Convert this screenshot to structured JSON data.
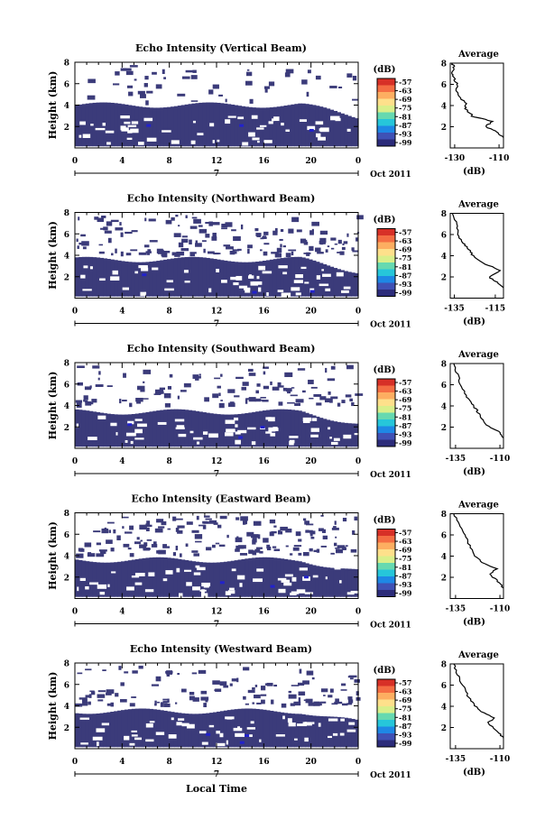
{
  "common": {
    "ylabel": "Height (km)",
    "xlabel": "Local Time",
    "date_label": "Oct 2011",
    "day_label": "7",
    "colorbar_unit": "(dB)",
    "colorbar_ticks": [
      "-57",
      "-63",
      "-69",
      "-75",
      "-81",
      "-87",
      "-93",
      "-99"
    ],
    "average_title": "Average",
    "average_xlabel": "(dB)",
    "colors": {
      "echo": "#3b3b7a",
      "speck": "#2222cc",
      "background": "#ffffff",
      "colorscale": [
        "#d73027",
        "#f46d43",
        "#fdae61",
        "#fee08b",
        "#d9ef8b",
        "#66d9b0",
        "#26c6da",
        "#1e88e5",
        "#3f51b5",
        "#2c2c7a"
      ]
    }
  },
  "chart_data": [
    {
      "type": "heatmap",
      "title": "Echo Intensity (Vertical Beam)",
      "x_ticks": [
        "0",
        "4",
        "8",
        "12",
        "16",
        "20",
        "0"
      ],
      "y_ticks": [
        "2",
        "4",
        "6",
        "8"
      ],
      "xlim": [
        0,
        24
      ],
      "ylim": [
        0,
        8
      ],
      "avg_ticks": [
        "-130",
        "-110"
      ],
      "avg_xlim": [
        -132,
        -108
      ],
      "avg_profile": [
        [
          -108,
          1
        ],
        [
          -111,
          1.5
        ],
        [
          -116,
          2
        ],
        [
          -113,
          2.5
        ],
        [
          -122,
          3
        ],
        [
          -125,
          3.7
        ],
        [
          -125,
          4.3
        ],
        [
          -129,
          5
        ],
        [
          -129,
          6
        ],
        [
          -130,
          6.5
        ],
        [
          -131,
          7
        ],
        [
          -130,
          7.5
        ],
        [
          -131,
          8
        ]
      ]
    },
    {
      "type": "heatmap",
      "title": "Echo Intensity (Northward Beam)",
      "x_ticks": [
        "0",
        "4",
        "8",
        "12",
        "16",
        "20",
        "0"
      ],
      "y_ticks": [
        "2",
        "4",
        "6",
        "8"
      ],
      "xlim": [
        0,
        24
      ],
      "ylim": [
        0,
        8
      ],
      "avg_ticks": [
        "-135",
        "-115"
      ],
      "avg_xlim": [
        -137,
        -111
      ],
      "avg_profile": [
        [
          -111,
          1
        ],
        [
          -114,
          1.5
        ],
        [
          -118,
          2
        ],
        [
          -112,
          2.6
        ],
        [
          -120,
          3.2
        ],
        [
          -126,
          4
        ],
        [
          -128,
          4.6
        ],
        [
          -131,
          5.2
        ],
        [
          -133,
          6
        ],
        [
          -134,
          7
        ],
        [
          -136,
          8
        ]
      ]
    },
    {
      "type": "heatmap",
      "title": "Echo Intensity (Southward Beam)",
      "x_ticks": [
        "0",
        "4",
        "8",
        "12",
        "16",
        "20",
        "0"
      ],
      "y_ticks": [
        "2",
        "4",
        "6",
        "8"
      ],
      "xlim": [
        0,
        24
      ],
      "ylim": [
        0,
        8
      ],
      "avg_ticks": [
        "-135",
        "-110"
      ],
      "avg_xlim": [
        -138,
        -108
      ],
      "avg_profile": [
        [
          -108,
          1
        ],
        [
          -111,
          1.6
        ],
        [
          -118,
          2.2
        ],
        [
          -121,
          3
        ],
        [
          -123,
          3.6
        ],
        [
          -126,
          4.2
        ],
        [
          -129,
          5
        ],
        [
          -132,
          6
        ],
        [
          -134,
          7
        ],
        [
          -136,
          8
        ]
      ]
    },
    {
      "type": "heatmap",
      "title": "Echo Intensity (Eastward Beam)",
      "x_ticks": [
        "0",
        "4",
        "8",
        "12",
        "16",
        "20",
        "0"
      ],
      "y_ticks": [
        "2",
        "4",
        "6",
        "8"
      ],
      "xlim": [
        0,
        24
      ],
      "ylim": [
        0,
        8
      ],
      "avg_ticks": [
        "-135",
        "-110"
      ],
      "avg_xlim": [
        -138,
        -108
      ],
      "avg_profile": [
        [
          -108,
          1
        ],
        [
          -111,
          1.6
        ],
        [
          -116,
          2.3
        ],
        [
          -112,
          2.8
        ],
        [
          -120,
          3.4
        ],
        [
          -124,
          4
        ],
        [
          -127,
          5
        ],
        [
          -130,
          6
        ],
        [
          -133,
          7
        ],
        [
          -136,
          8
        ]
      ]
    },
    {
      "type": "heatmap",
      "title": "Echo Intensity (Westward Beam)",
      "x_ticks": [
        "0",
        "4",
        "8",
        "12",
        "16",
        "20",
        "0"
      ],
      "y_ticks": [
        "2",
        "4",
        "6",
        "8"
      ],
      "xlim": [
        0,
        24
      ],
      "ylim": [
        0,
        8
      ],
      "avg_ticks": [
        "-135",
        "-110"
      ],
      "avg_xlim": [
        -138,
        -108
      ],
      "avg_profile": [
        [
          -108,
          1
        ],
        [
          -111,
          1.6
        ],
        [
          -117,
          2.4
        ],
        [
          -113,
          2.9
        ],
        [
          -121,
          3.5
        ],
        [
          -125,
          4.2
        ],
        [
          -128,
          5
        ],
        [
          -131,
          6
        ],
        [
          -134,
          7
        ],
        [
          -136,
          8
        ]
      ]
    }
  ]
}
